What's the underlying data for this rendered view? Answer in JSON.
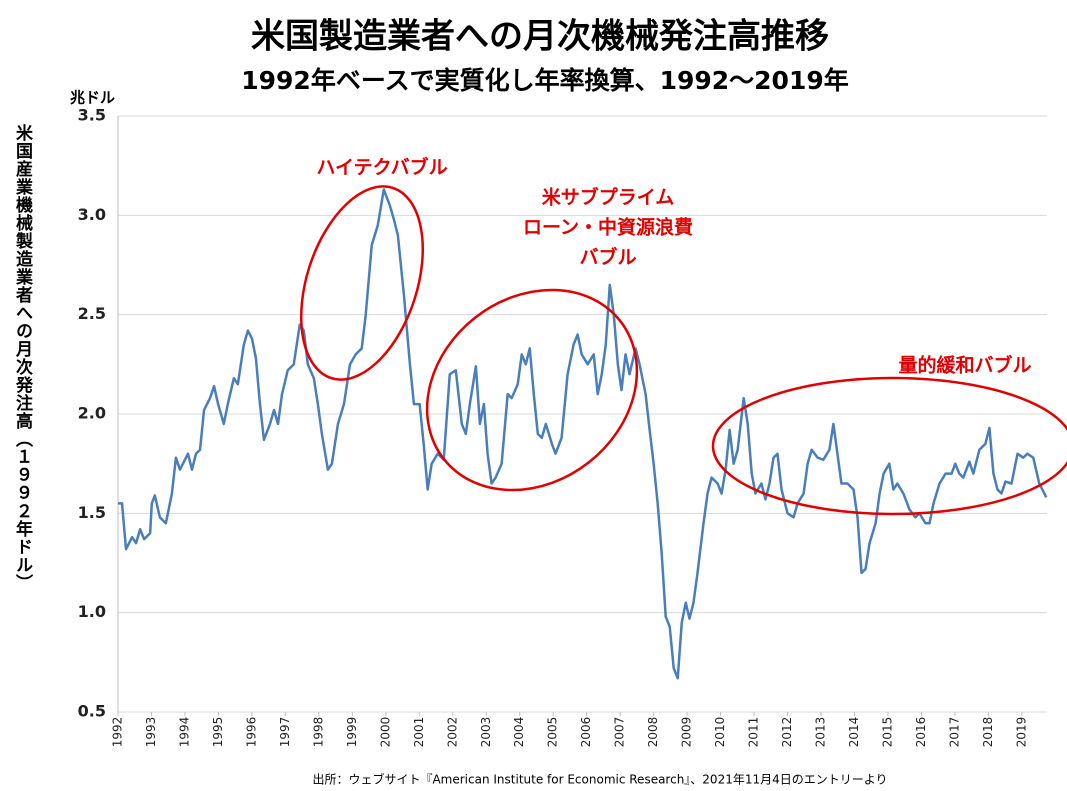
{
  "chart_data": {
    "type": "line",
    "title": "米国製造業者への月次機械発注高推移",
    "subtitle": "1992年ベースで実質化し年率換算、1992〜2019年",
    "y_unit": "兆ドル",
    "y_label": "米国産業機械製造業者への月次発注高（１９９２年ドル）",
    "source": "出所：ウェブサイト『American Institute for Economic Research』、2021年11月4日のエントリーより",
    "annotations": [
      "ハイテクバブル",
      [
        "米サブプライム",
        "ローン・中資源浪費",
        "バブル"
      ],
      "量的緩和バブル"
    ],
    "color": "#4a7ebb",
    "grid": true,
    "xlim": [
      1992,
      2019.75
    ],
    "xticks": [
      1992,
      1993,
      1994,
      1995,
      1996,
      1997,
      1998,
      1999,
      2000,
      2001,
      2002,
      2003,
      2004,
      2005,
      2006,
      2007,
      2008,
      2009,
      2010,
      2011,
      2012,
      2013,
      2014,
      2015,
      2016,
      2017,
      2018,
      2019
    ],
    "ylim": [
      0.5,
      3.5
    ],
    "yticks": [
      0.5,
      {
        "value": 1,
        "label": "1.0"
      },
      1.5,
      {
        "value": 2,
        "label": "2.0"
      },
      2.5,
      {
        "value": 3,
        "label": "3.0"
      },
      3.5
    ],
    "x": [
      1992.0,
      1992.12,
      1992.24,
      1992.42,
      1992.54,
      1992.66,
      1992.78,
      1992.96,
      1993.01,
      1993.1,
      1993.25,
      1993.43,
      1993.61,
      1993.73,
      1993.85,
      1993.97,
      1994.09,
      1994.21,
      1994.33,
      1994.45,
      1994.57,
      1994.75,
      1994.87,
      1994.99,
      1995.16,
      1995.28,
      1995.46,
      1995.58,
      1995.76,
      1995.88,
      1996.0,
      1996.12,
      1996.24,
      1996.36,
      1996.54,
      1996.66,
      1996.78,
      1996.9,
      1997.07,
      1997.25,
      1997.43,
      1997.55,
      1997.67,
      1997.85,
      1997.97,
      1998.09,
      1998.27,
      1998.39,
      1998.57,
      1998.75,
      1998.93,
      1999.1,
      1999.28,
      1999.4,
      1999.58,
      1999.76,
      1999.94,
      2000.12,
      2000.24,
      2000.36,
      2000.54,
      2000.72,
      2000.84,
      2001.01,
      2001.13,
      2001.25,
      2001.37,
      2001.55,
      2001.73,
      2001.91,
      2002.09,
      2002.27,
      2002.39,
      2002.51,
      2002.69,
      2002.81,
      2002.93,
      2003.04,
      2003.16,
      2003.28,
      2003.46,
      2003.64,
      2003.76,
      2003.94,
      2004.06,
      2004.18,
      2004.3,
      2004.42,
      2004.54,
      2004.66,
      2004.78,
      2004.96,
      2005.07,
      2005.25,
      2005.43,
      2005.61,
      2005.73,
      2005.85,
      2006.03,
      2006.21,
      2006.33,
      2006.45,
      2006.57,
      2006.69,
      2006.81,
      2006.93,
      2007.04,
      2007.16,
      2007.28,
      2007.46,
      2007.58,
      2007.76,
      2007.88,
      2008.0,
      2008.12,
      2008.24,
      2008.36,
      2008.48,
      2008.6,
      2008.72,
      2008.84,
      2008.96,
      2009.07,
      2009.19,
      2009.31,
      2009.49,
      2009.61,
      2009.73,
      2009.91,
      2010.03,
      2010.15,
      2010.27,
      2010.39,
      2010.51,
      2010.69,
      2010.81,
      2010.93,
      2011.04,
      2011.22,
      2011.34,
      2011.46,
      2011.58,
      2011.7,
      2011.82,
      2012.0,
      2012.18,
      2012.3,
      2012.48,
      2012.6,
      2012.72,
      2012.9,
      2013.07,
      2013.25,
      2013.37,
      2013.49,
      2013.61,
      2013.79,
      2013.97,
      2014.09,
      2014.21,
      2014.33,
      2014.45,
      2014.63,
      2014.75,
      2014.87,
      2015.04,
      2015.16,
      2015.28,
      2015.46,
      2015.64,
      2015.82,
      2015.94,
      2016.12,
      2016.24,
      2016.36,
      2016.54,
      2016.72,
      2016.9,
      2017.01,
      2017.13,
      2017.25,
      2017.43,
      2017.55,
      2017.73,
      2017.91,
      2018.03,
      2018.15,
      2018.27,
      2018.39,
      2018.51,
      2018.69,
      2018.87,
      2019.04,
      2019.16,
      2019.34,
      2019.52,
      2019.73
    ],
    "values": [
      1.55,
      1.55,
      1.32,
      1.38,
      1.35,
      1.42,
      1.37,
      1.4,
      1.55,
      1.59,
      1.48,
      1.45,
      1.6,
      1.78,
      1.72,
      1.76,
      1.8,
      1.72,
      1.8,
      1.82,
      2.02,
      2.08,
      2.14,
      2.05,
      1.95,
      2.05,
      2.18,
      2.15,
      2.35,
      2.42,
      2.38,
      2.28,
      2.05,
      1.87,
      1.95,
      2.02,
      1.95,
      2.1,
      2.22,
      2.25,
      2.45,
      2.42,
      2.25,
      2.18,
      2.05,
      1.9,
      1.72,
      1.75,
      1.95,
      2.05,
      2.25,
      2.3,
      2.33,
      2.5,
      2.85,
      2.95,
      3.13,
      3.05,
      2.98,
      2.9,
      2.6,
      2.25,
      2.05,
      2.05,
      1.85,
      1.62,
      1.75,
      1.8,
      1.77,
      2.2,
      2.22,
      1.95,
      1.9,
      2.05,
      2.24,
      1.95,
      2.05,
      1.8,
      1.65,
      1.68,
      1.75,
      2.1,
      2.08,
      2.15,
      2.3,
      2.25,
      2.33,
      2.1,
      1.9,
      1.88,
      1.95,
      1.85,
      1.8,
      1.88,
      2.2,
      2.35,
      2.4,
      2.3,
      2.25,
      2.3,
      2.1,
      2.2,
      2.35,
      2.65,
      2.5,
      2.25,
      2.12,
      2.3,
      2.2,
      2.33,
      2.25,
      2.1,
      1.92,
      1.75,
      1.55,
      1.3,
      0.98,
      0.93,
      0.72,
      0.67,
      0.95,
      1.05,
      0.97,
      1.05,
      1.2,
      1.45,
      1.6,
      1.68,
      1.65,
      1.6,
      1.72,
      1.92,
      1.75,
      1.82,
      2.08,
      1.95,
      1.7,
      1.6,
      1.65,
      1.57,
      1.65,
      1.78,
      1.8,
      1.62,
      1.5,
      1.48,
      1.55,
      1.6,
      1.75,
      1.82,
      1.78,
      1.77,
      1.82,
      1.95,
      1.8,
      1.65,
      1.65,
      1.62,
      1.48,
      1.2,
      1.22,
      1.35,
      1.45,
      1.6,
      1.7,
      1.75,
      1.62,
      1.65,
      1.6,
      1.52,
      1.48,
      1.5,
      1.45,
      1.45,
      1.55,
      1.65,
      1.7,
      1.7,
      1.75,
      1.7,
      1.68,
      1.76,
      1.7,
      1.82,
      1.85,
      1.93,
      1.7,
      1.62,
      1.6,
      1.66,
      1.65,
      1.8,
      1.78,
      1.8,
      1.78,
      1.65,
      1.58
    ]
  }
}
